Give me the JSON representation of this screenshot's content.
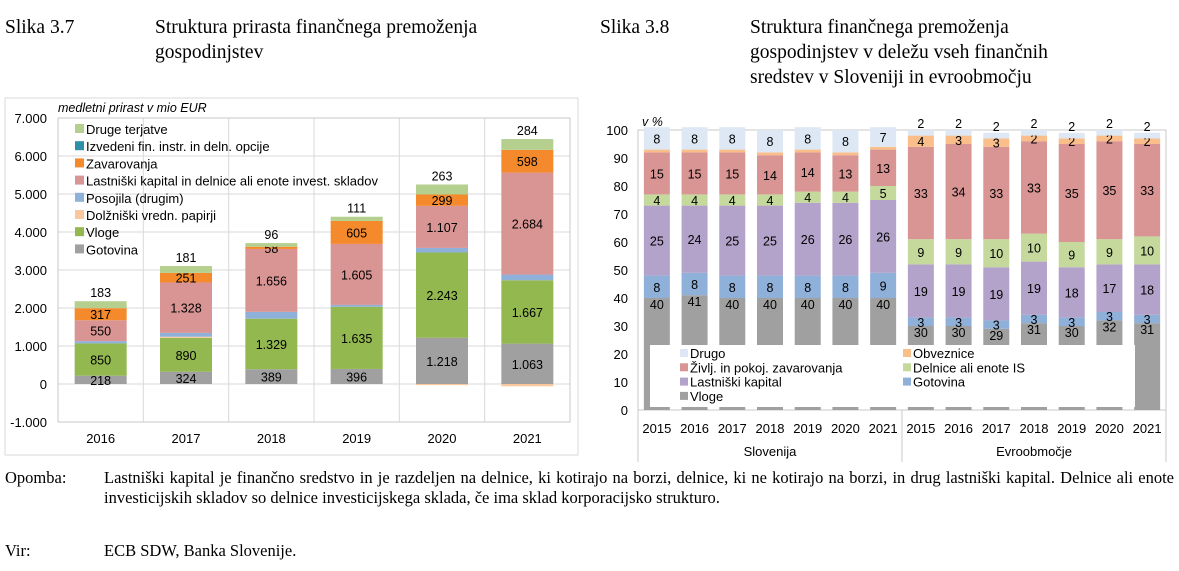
{
  "figures": [
    {
      "label": "Slika 3.7",
      "title": "Struktura prirasta finančnega premoženja gospodinjstev",
      "title_lines": [
        "Struktura prirasta finančnega premoženja",
        "gospodinjstev"
      ]
    },
    {
      "label": "Slika 3.8",
      "title": "Struktura finančnega premoženja gospodinjstev v deležu vseh finančnih sredstev v Sloveniji in evroobmočju",
      "title_lines": [
        "Struktura finančnega premoženja",
        "gospodinjstev v deležu vseh finančnih",
        "sredstev v Sloveniji in evroobmočju"
      ]
    }
  ],
  "chart_data": [
    {
      "type": "bar",
      "stacked": true,
      "ylabel": "medletni prirast v mio EUR",
      "ylim": [
        -1000,
        7000
      ],
      "yticks": [
        "-1.000",
        "0",
        "1.000",
        "2.000",
        "3.000",
        "4.000",
        "5.000",
        "6.000",
        "7.000"
      ],
      "ytick_values": [
        -1000,
        0,
        1000,
        2000,
        3000,
        4000,
        5000,
        6000,
        7000
      ],
      "grid": true,
      "legend": "top-left",
      "categories": [
        "2016",
        "2017",
        "2018",
        "2019",
        "2020",
        "2021"
      ],
      "series": [
        {
          "name": "Gotovina",
          "color": "#a0a0a0",
          "values": [
            218,
            324,
            389,
            396,
            1218,
            1063
          ],
          "labels": [
            "218",
            "324",
            "389",
            "396",
            "1.218",
            "1.063"
          ]
        },
        {
          "name": "Vloge",
          "color": "#92b84f",
          "values": [
            850,
            890,
            1329,
            1635,
            2243,
            1667
          ],
          "labels": [
            "850",
            "890",
            "1.329",
            "1.635",
            "2.243",
            "1.667"
          ]
        },
        {
          "name": "Dolžniški vredn. papirji",
          "color": "#fac89c",
          "values": [
            0,
            30,
            0,
            0,
            -30,
            -60
          ]
        },
        {
          "name": "Posojila (drugim)",
          "color": "#8fb0d8",
          "values": [
            60,
            100,
            180,
            50,
            120,
            150
          ]
        },
        {
          "name": "Lastniški kapital in delnice ali enote invest. skladov",
          "color": "#d99594",
          "values": [
            550,
            1328,
            1656,
            1605,
            1107,
            2684
          ],
          "labels": [
            "550",
            "1.328",
            "1.656",
            "1.605",
            "1.107",
            "2.684"
          ]
        },
        {
          "name": "Izvedeni fin. instr. in deln. opcije",
          "color": "#2e8fa8",
          "values": [
            0,
            0,
            0,
            0,
            0,
            0
          ]
        },
        {
          "name": "Zavarovanja",
          "color": "#f58a2c",
          "values": [
            317,
            251,
            58,
            605,
            299,
            598
          ],
          "labels": [
            "317",
            "251",
            "58",
            "605",
            "299",
            "598"
          ]
        },
        {
          "name": "Druge terjatve",
          "color": "#b5cf8f",
          "values": [
            183,
            181,
            96,
            111,
            263,
            284
          ],
          "labels": [
            "183",
            "181",
            "96",
            "111",
            "263",
            "284"
          ],
          "label_above": true
        }
      ],
      "legend_order": [
        "Druge terjatve",
        "Izvedeni fin. instr. in deln. opcije",
        "Zavarovanja",
        "Lastniški kapital in delnice ali enote invest. skladov",
        "Posojila (drugim)",
        "Dolžniški vredn. papirji",
        "Vloge",
        "Gotovina"
      ]
    },
    {
      "type": "bar",
      "stacked": true,
      "ylabel": "v %",
      "ylim": [
        0,
        100
      ],
      "yticks": [
        "0",
        "10",
        "20",
        "30",
        "40",
        "50",
        "60",
        "70",
        "80",
        "90",
        "100"
      ],
      "ytick_values": [
        0,
        10,
        20,
        30,
        40,
        50,
        60,
        70,
        80,
        90,
        100
      ],
      "grid": false,
      "legend": "bottom",
      "categories": [
        "2015",
        "2016",
        "2017",
        "2018",
        "2019",
        "2020",
        "2021",
        "2015",
        "2016",
        "2017",
        "2018",
        "2019",
        "2020",
        "2021"
      ],
      "groups": [
        {
          "name": "Slovenija",
          "count": 7
        },
        {
          "name": "Evroobmočje",
          "count": 7
        }
      ],
      "series": [
        {
          "name": "Vloge",
          "color": "#a0a0a0",
          "values": [
            40,
            41,
            40,
            40,
            40,
            40,
            40,
            30,
            30,
            29,
            31,
            30,
            32,
            31
          ]
        },
        {
          "name": "Gotovina",
          "color": "#8fb0d8",
          "values": [
            8,
            8,
            8,
            8,
            8,
            8,
            9,
            3,
            3,
            3,
            3,
            3,
            3,
            3
          ]
        },
        {
          "name": "Lastniški kapital",
          "color": "#b3a2c9",
          "values": [
            25,
            24,
            25,
            25,
            26,
            26,
            26,
            19,
            19,
            19,
            19,
            18,
            17,
            18
          ]
        },
        {
          "name": "Delnice ali enote IS",
          "color": "#c4d99b",
          "values": [
            4,
            4,
            4,
            4,
            4,
            4,
            5,
            9,
            9,
            10,
            10,
            9,
            9,
            10
          ]
        },
        {
          "name": "Življ. in pokoj. zavarovanja",
          "color": "#d99594",
          "values": [
            15,
            15,
            15,
            14,
            14,
            13,
            13,
            33,
            34,
            33,
            33,
            35,
            35,
            33
          ]
        },
        {
          "name": "Obveznice",
          "color": "#f9be8a",
          "values": [
            1,
            1,
            1,
            1,
            1,
            1,
            1,
            4,
            3,
            3,
            2,
            2,
            2,
            2
          ]
        },
        {
          "name": "Drugo",
          "color": "#dde8f4",
          "values": [
            8,
            8,
            8,
            8,
            8,
            8,
            7,
            2,
            2,
            2,
            2,
            2,
            2,
            2
          ]
        }
      ],
      "legend_items": [
        "Drugo",
        "Obveznice",
        "Življ. in pokoj. zavarovanja",
        "Delnice ali enote IS",
        "Lastniški kapital",
        "Gotovina",
        "Vloge"
      ],
      "legend_labels": [
        "Drugo",
        "Obveznice",
        "Življ. in pokoj. zavarovanja",
        "Delnice ali enote IS",
        "Lastniški kapital",
        "Gotovina",
        "Vloge"
      ]
    }
  ],
  "note": {
    "label": "Opomba:",
    "text": "Lastniški kapital je finančno sredstvo in je razdeljen na delnice, ki kotirajo na borzi, delnice, ki ne kotirajo na borzi, in drug lastniški kapital. Delnice ali enote investicijskih skladov so delnice investicijskega sklada, če ima sklad korporacijsko strukturo."
  },
  "source": {
    "label": "Vir:",
    "text": "ECB SDW, Banka Slovenije."
  }
}
